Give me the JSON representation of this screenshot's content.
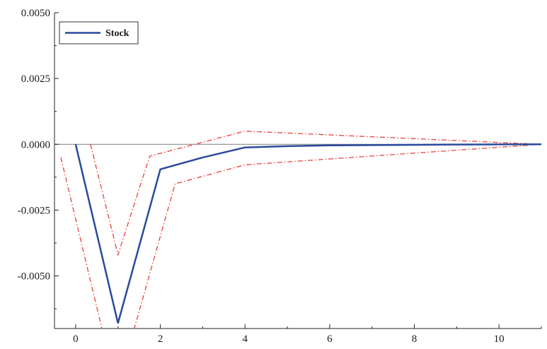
{
  "chart_data": {
    "type": "line",
    "x": [
      0,
      1,
      2,
      3,
      4,
      5,
      6,
      7,
      8,
      9,
      10,
      11
    ],
    "series": [
      {
        "name": "Stock",
        "role": "response",
        "color": "#2a4a9c",
        "values": [
          0.0,
          -0.0068,
          -0.00095,
          -0.0005,
          -0.00012,
          -7e-05,
          -4e-05,
          -3e-05,
          -2e-05,
          -1e-05,
          -5e-06,
          0.0
        ]
      },
      {
        "name": "",
        "role": "upper-band",
        "color": "#e8413c",
        "x": [
          0.35,
          1,
          1.75,
          4,
          11
        ],
        "values": [
          0.0,
          -0.0042,
          -0.00045,
          0.0005,
          0.0
        ]
      },
      {
        "name": "",
        "role": "lower-band",
        "color": "#e8413c",
        "x": [
          -0.35,
          0.65,
          1.35,
          2.35,
          4,
          11
        ],
        "values": [
          -0.0005,
          -0.0072,
          -0.0072,
          -0.0015,
          -0.00078,
          0.0
        ]
      }
    ],
    "xlim": [
      -0.5,
      11
    ],
    "ylim": [
      -0.007,
      0.005
    ],
    "x_ticks": [
      "0",
      "2",
      "4",
      "6",
      "8",
      "10"
    ],
    "x_tick_values": [
      0,
      2,
      4,
      6,
      8,
      10
    ],
    "y_ticks": [
      "0.0050",
      "0.0025",
      "0.0000",
      "-0.0025",
      "-0.0050"
    ],
    "y_tick_values": [
      0.005,
      0.0025,
      0.0,
      -0.0025,
      -0.005
    ],
    "zero_line": true,
    "grid": false,
    "legend": {
      "position": "top-left",
      "entries": [
        "Stock"
      ]
    },
    "title": "",
    "xlabel": "",
    "ylabel": ""
  }
}
